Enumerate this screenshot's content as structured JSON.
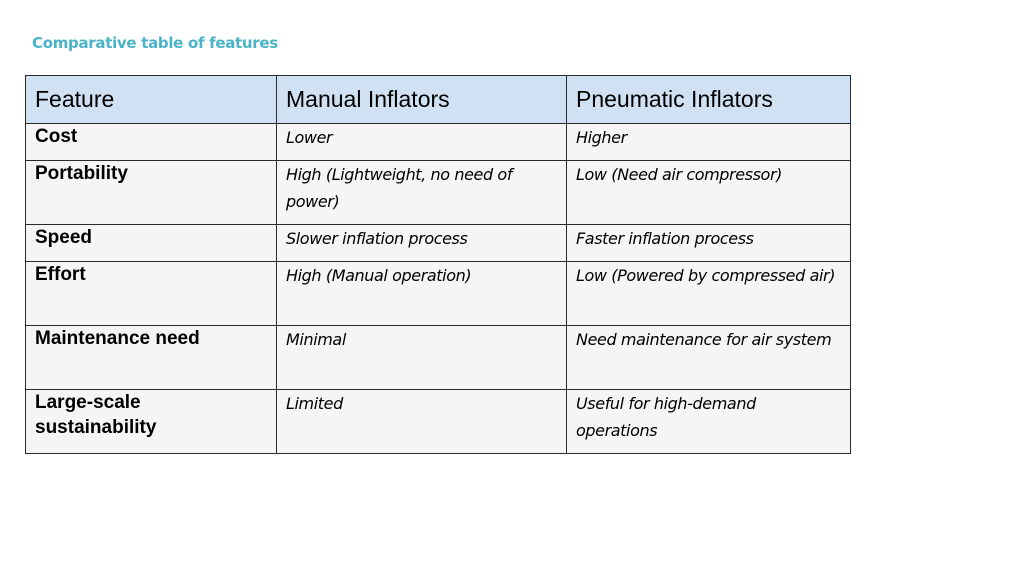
{
  "slide": {
    "title": "Comparative table of features"
  },
  "table": {
    "headers": [
      "Feature",
      "Manual Inflators",
      "Pneumatic Inflators"
    ],
    "rows": [
      {
        "feature": "Cost",
        "manual": "Lower",
        "pneumatic": "Higher"
      },
      {
        "feature": "Portability",
        "manual": "High (Lightweight, no need of power)",
        "pneumatic": "Low (Need air compressor)"
      },
      {
        "feature": "Speed",
        "manual": "Slower inflation process",
        "pneumatic": "Faster inflation process"
      },
      {
        "feature": "Effort",
        "manual": "High (Manual operation)",
        "pneumatic": "Low (Powered by compressed air)"
      },
      {
        "feature": "Maintenance need",
        "manual": "Minimal",
        "pneumatic": "Need maintenance for air system"
      },
      {
        "feature": "Large-scale sustainability",
        "manual": "Limited",
        "pneumatic": "Useful for high-demand operations"
      }
    ]
  },
  "colors": {
    "title": "#4bb3c8",
    "header_bg": "#cfe1f3",
    "cell_bg": "#f5f5f5",
    "border": "#2b2b2b"
  }
}
